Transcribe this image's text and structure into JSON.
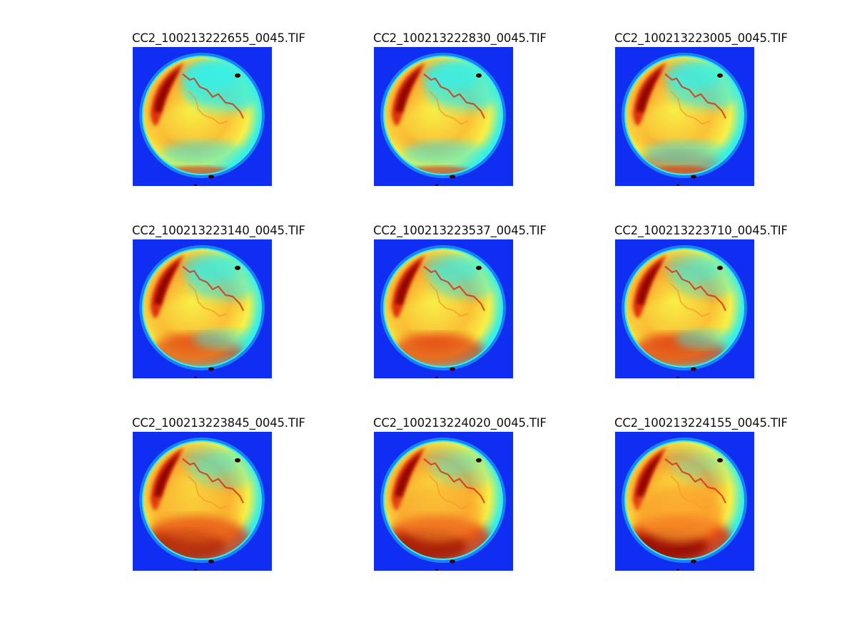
{
  "panels": [
    {
      "title": "CC2_100213222655_0045.TIF"
    },
    {
      "title": "CC2_100213222830_0045.TIF"
    },
    {
      "title": "CC2_100213223005_0045.TIF"
    },
    {
      "title": "CC2_100213223140_0045.TIF"
    },
    {
      "title": "CC2_100213223537_0045.TIF"
    },
    {
      "title": "CC2_100213223710_0045.TIF"
    },
    {
      "title": "CC2_100213223845_0045.TIF"
    },
    {
      "title": "CC2_100213224020_0045.TIF"
    },
    {
      "title": "CC2_100213224155_0045.TIF"
    }
  ],
  "colors": {
    "background": "#0f2ef2",
    "ring": "#22c8ff",
    "cyan": "#37f0e6",
    "yellow": "#f8f046",
    "orange": "#fb9b2a",
    "red": "#dd2b10",
    "darkred": "#850303",
    "spot": "#3a0000"
  }
}
